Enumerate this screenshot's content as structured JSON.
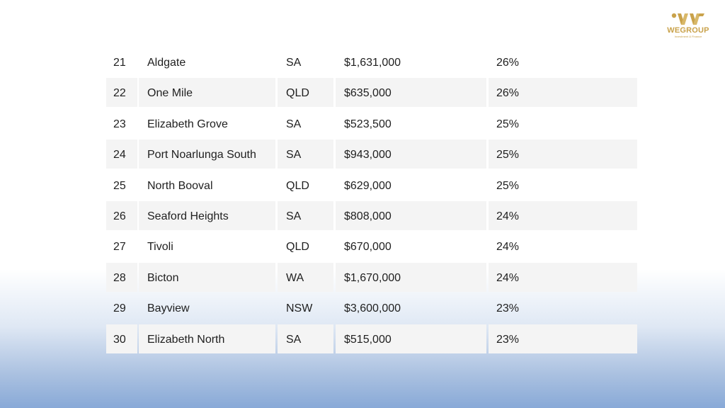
{
  "logo": {
    "name": "WEGROUP",
    "tagline": "Investment & Finance",
    "color": "#c9a24b"
  },
  "table": {
    "rows": [
      {
        "rank": "21",
        "suburb": "Aldgate",
        "state": "SA",
        "price": "$1,631,000",
        "growth": "26%"
      },
      {
        "rank": "22",
        "suburb": "One Mile",
        "state": "QLD",
        "price": "$635,000",
        "growth": "26%"
      },
      {
        "rank": "23",
        "suburb": "Elizabeth Grove",
        "state": "SA",
        "price": "$523,500",
        "growth": "25%"
      },
      {
        "rank": "24",
        "suburb": "Port Noarlunga South",
        "state": "SA",
        "price": "$943,000",
        "growth": "25%"
      },
      {
        "rank": "25",
        "suburb": "North Booval",
        "state": "QLD",
        "price": "$629,000",
        "growth": "25%"
      },
      {
        "rank": "26",
        "suburb": "Seaford Heights",
        "state": "SA",
        "price": "$808,000",
        "growth": "24%"
      },
      {
        "rank": "27",
        "suburb": "Tivoli",
        "state": "QLD",
        "price": "$670,000",
        "growth": "24%"
      },
      {
        "rank": "28",
        "suburb": "Bicton",
        "state": "WA",
        "price": "$1,670,000",
        "growth": "24%"
      },
      {
        "rank": "29",
        "suburb": "Bayview",
        "state": "NSW",
        "price": "$3,600,000",
        "growth": "23%"
      },
      {
        "rank": "30",
        "suburb": "Elizabeth North",
        "state": "SA",
        "price": "$515,000",
        "growth": "23%"
      }
    ]
  }
}
